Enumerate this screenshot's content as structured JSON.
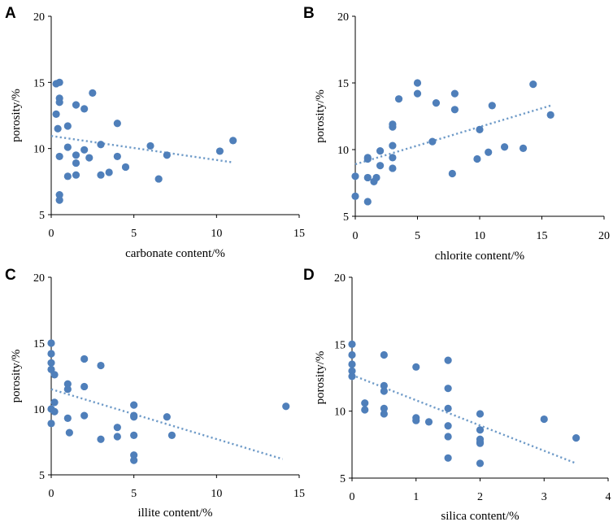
{
  "colors": {
    "point": "#4f7fba",
    "trend": "#6f9bc8",
    "axis": "#000000"
  },
  "chart_data": [
    {
      "panel": "A",
      "type": "scatter",
      "xlabel": "carbonate content/%",
      "ylabel": "porosity/%",
      "xlim": [
        0,
        15
      ],
      "ylim": [
        5,
        20
      ],
      "x_ticks": [
        "0",
        "5",
        "10",
        "15"
      ],
      "y_ticks": [
        "5",
        "10",
        "15",
        "20"
      ],
      "trend": {
        "x": [
          0,
          11
        ],
        "y": [
          10.95,
          8.95
        ]
      },
      "points": [
        [
          0.3,
          14.9
        ],
        [
          0.5,
          15.0
        ],
        [
          0.5,
          13.8
        ],
        [
          0.5,
          13.5
        ],
        [
          0.3,
          12.6
        ],
        [
          0.4,
          11.5
        ],
        [
          0.5,
          9.4
        ],
        [
          0.5,
          6.5
        ],
        [
          0.5,
          6.1
        ],
        [
          1.0,
          11.7
        ],
        [
          1.0,
          10.1
        ],
        [
          1.0,
          7.9
        ],
        [
          1.5,
          13.3
        ],
        [
          1.5,
          9.5
        ],
        [
          1.5,
          8.9
        ],
        [
          1.5,
          8.0
        ],
        [
          2.0,
          13.0
        ],
        [
          2.0,
          9.9
        ],
        [
          2.5,
          14.2
        ],
        [
          2.3,
          9.3
        ],
        [
          3.0,
          10.3
        ],
        [
          3.0,
          8.0
        ],
        [
          3.5,
          8.2
        ],
        [
          4.0,
          11.9
        ],
        [
          4.0,
          9.4
        ],
        [
          4.5,
          8.6
        ],
        [
          6.0,
          10.2
        ],
        [
          6.5,
          7.7
        ],
        [
          7.0,
          9.5
        ],
        [
          10.2,
          9.8
        ],
        [
          11.0,
          10.6
        ]
      ]
    },
    {
      "panel": "B",
      "type": "scatter",
      "xlabel": "chlorite content/%",
      "ylabel": "porosity/%",
      "xlim": [
        0,
        20
      ],
      "ylim": [
        5,
        20
      ],
      "x_ticks": [
        "0",
        "5",
        "10",
        "15",
        "20"
      ],
      "y_ticks": [
        "5",
        "10",
        "15",
        "20"
      ],
      "trend": {
        "x": [
          0,
          15.7
        ],
        "y": [
          8.9,
          13.3
        ]
      },
      "points": [
        [
          0,
          8.0
        ],
        [
          0,
          6.5
        ],
        [
          1.0,
          9.3
        ],
        [
          1.0,
          9.4
        ],
        [
          1.0,
          7.9
        ],
        [
          1.0,
          6.1
        ],
        [
          1.5,
          7.6
        ],
        [
          1.7,
          7.9
        ],
        [
          2.0,
          9.9
        ],
        [
          2.0,
          8.8
        ],
        [
          3.0,
          11.9
        ],
        [
          3.0,
          11.7
        ],
        [
          3.0,
          10.3
        ],
        [
          3.0,
          9.4
        ],
        [
          3.0,
          8.6
        ],
        [
          3.5,
          13.8
        ],
        [
          5.0,
          15.0
        ],
        [
          5.0,
          14.2
        ],
        [
          6.2,
          10.6
        ],
        [
          6.5,
          13.5
        ],
        [
          7.8,
          8.2
        ],
        [
          8.0,
          14.2
        ],
        [
          8.0,
          13.0
        ],
        [
          9.8,
          9.3
        ],
        [
          10.0,
          11.5
        ],
        [
          10.7,
          9.8
        ],
        [
          11.0,
          13.3
        ],
        [
          12.0,
          10.2
        ],
        [
          13.5,
          10.1
        ],
        [
          14.3,
          14.9
        ],
        [
          15.7,
          12.6
        ]
      ]
    },
    {
      "panel": "C",
      "type": "scatter",
      "xlabel": "illite content/%",
      "ylabel": "porosity/%",
      "xlim": [
        0,
        15
      ],
      "ylim": [
        5,
        20
      ],
      "x_ticks": [
        "0",
        "5",
        "10",
        "15"
      ],
      "y_ticks": [
        "5",
        "10",
        "15",
        "20"
      ],
      "trend": {
        "x": [
          0,
          14
        ],
        "y": [
          11.5,
          6.2
        ]
      },
      "points": [
        [
          0,
          15.0
        ],
        [
          0,
          14.2
        ],
        [
          0,
          13.5
        ],
        [
          0,
          13.0
        ],
        [
          0.2,
          12.6
        ],
        [
          0.2,
          10.5
        ],
        [
          0,
          10.0
        ],
        [
          0.2,
          9.8
        ],
        [
          0,
          8.9
        ],
        [
          1.0,
          11.9
        ],
        [
          1.0,
          11.5
        ],
        [
          1.0,
          9.3
        ],
        [
          1.1,
          8.2
        ],
        [
          2.0,
          13.8
        ],
        [
          2.0,
          11.7
        ],
        [
          2.0,
          9.5
        ],
        [
          3.0,
          13.3
        ],
        [
          3.0,
          7.7
        ],
        [
          4.0,
          8.6
        ],
        [
          4.0,
          7.9
        ],
        [
          5.0,
          10.3
        ],
        [
          5.0,
          9.5
        ],
        [
          5.0,
          9.4
        ],
        [
          5.0,
          8.0
        ],
        [
          5.0,
          6.5
        ],
        [
          5.0,
          6.1
        ],
        [
          7.0,
          9.4
        ],
        [
          7.3,
          8.0
        ],
        [
          14.2,
          10.2
        ]
      ]
    },
    {
      "panel": "D",
      "type": "scatter",
      "xlabel": "silica content/%",
      "ylabel": "porosity/%",
      "xlim": [
        0,
        4
      ],
      "ylim": [
        5,
        20
      ],
      "x_ticks": [
        "0",
        "1",
        "2",
        "3",
        "4"
      ],
      "y_ticks": [
        "5",
        "10",
        "15",
        "20"
      ],
      "trend": {
        "x": [
          0,
          3.5
        ],
        "y": [
          12.7,
          6.1
        ]
      },
      "points": [
        [
          0,
          15.0
        ],
        [
          0,
          14.2
        ],
        [
          0,
          13.5
        ],
        [
          0,
          13.0
        ],
        [
          0,
          12.6
        ],
        [
          0.2,
          10.6
        ],
        [
          0.2,
          10.1
        ],
        [
          0.5,
          14.2
        ],
        [
          0.5,
          11.9
        ],
        [
          0.5,
          11.5
        ],
        [
          0.5,
          10.2
        ],
        [
          0.5,
          9.8
        ],
        [
          1.0,
          13.3
        ],
        [
          1.0,
          9.5
        ],
        [
          1.0,
          9.3
        ],
        [
          1.2,
          9.2
        ],
        [
          1.5,
          13.8
        ],
        [
          1.5,
          11.7
        ],
        [
          1.5,
          10.2
        ],
        [
          1.5,
          8.9
        ],
        [
          1.5,
          8.1
        ],
        [
          1.5,
          6.5
        ],
        [
          2.0,
          9.8
        ],
        [
          2.0,
          8.6
        ],
        [
          2.0,
          7.9
        ],
        [
          2.0,
          7.7
        ],
        [
          2.0,
          7.6
        ],
        [
          2.0,
          6.1
        ],
        [
          3.0,
          9.4
        ],
        [
          3.5,
          8.0
        ]
      ]
    }
  ]
}
